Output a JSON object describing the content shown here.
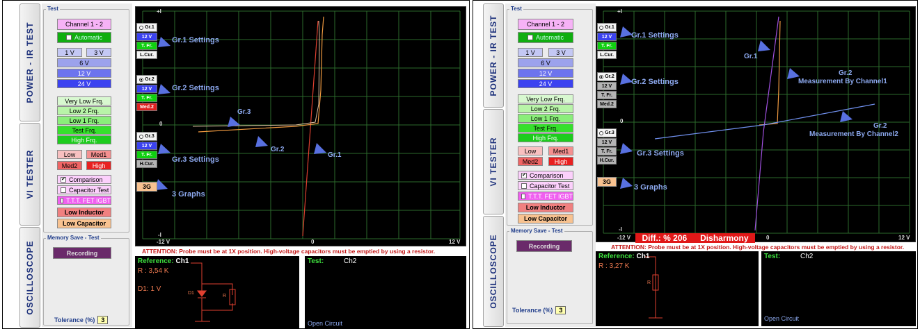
{
  "tabs": {
    "power": "POWER - IR TEST",
    "vi": "VI TESTER",
    "osc": "OSCILLOSCOPE"
  },
  "test_legend": "Test",
  "memory_legend": "Memory Save - Test",
  "buttons": {
    "channel": "Channel 1 - 2",
    "automatic": "Automatic",
    "v1": "1 V",
    "v3": "3 V",
    "v6": "6 V",
    "v12": "12 V",
    "v24": "24 V",
    "vlf": "Very Low Frq.",
    "lf2": "Low 2 Frq.",
    "lf1": "Low 1 Frq.",
    "tf": "Test Frq.",
    "hf": "High Frq.",
    "low": "Low",
    "med1": "Med1",
    "med2": "Med2",
    "high": "High",
    "comparison": "Comparison",
    "captest": "Capacitor Test",
    "ttt": "T.T.T. FET IGBT",
    "lowind": "Low Inductor",
    "lowcap": "Low Capacitor",
    "recording": "Recording",
    "g3": "3G"
  },
  "tolerance": {
    "label": "Tolerance (%)",
    "value": "3"
  },
  "graph_settings": {
    "gr1": "Gr.1",
    "gr2": "Gr.2",
    "gr3": "Gr.3",
    "v12": "12 V",
    "tfr": "T. Fr.",
    "lcur": "L.Cur.",
    "med2": "Med.2",
    "hcur": "H.Cur."
  },
  "axes": {
    "top": "+I",
    "left": "0",
    "bottom": "-I",
    "xmin": "-12 V",
    "x0": "0",
    "xmax": "12 V"
  },
  "attention": "ATTENTION: Probe must be at 1X position. High-voltage capacitors must be emptied by using a resistor.",
  "left": {
    "annot": {
      "gr1s": "Gr.1 Settings",
      "gr2s": "Gr.2 Settings",
      "gr3s": "Gr.3 Settings",
      "g3": "3 Graphs",
      "gr3": "Gr.3",
      "gr2": "Gr.2",
      "gr1": "Gr.1"
    },
    "ref": {
      "title": "Reference:",
      "ch": "Ch1",
      "r": "R : 3,54 K",
      "d1": "D1: 1 V",
      "d1lbl": "D1",
      "rlbl": "R"
    },
    "test": {
      "title": "Test:",
      "ch": "Ch2",
      "status": "Open Circuit"
    }
  },
  "right": {
    "annot": {
      "gr1s": "Gr.1 Settings",
      "gr2s": "Gr.2 Settings",
      "gr3s": "Gr.3 Settings",
      "g3": "3 Graphs",
      "gr1": "Gr.1",
      "gr2a": "Gr.2",
      "gr2a2": "Measurement By Channel1",
      "gr2b": "Gr.2",
      "gr2b2": "Measurement By Channel2"
    },
    "diff": {
      "label": "Diff.: % 206",
      "status": "Disharmony"
    },
    "ref": {
      "title": "Reference:",
      "ch": "Ch1",
      "r": "R : 3,27 K",
      "rlbl": "R"
    },
    "test": {
      "title": "Test:",
      "ch": "Ch2",
      "status": "Open Circuit"
    }
  },
  "colors": {
    "accent": "#8ca8ee",
    "attention": "#c41818",
    "plot_bg": "#000000",
    "grid": "#2c6a2c"
  }
}
